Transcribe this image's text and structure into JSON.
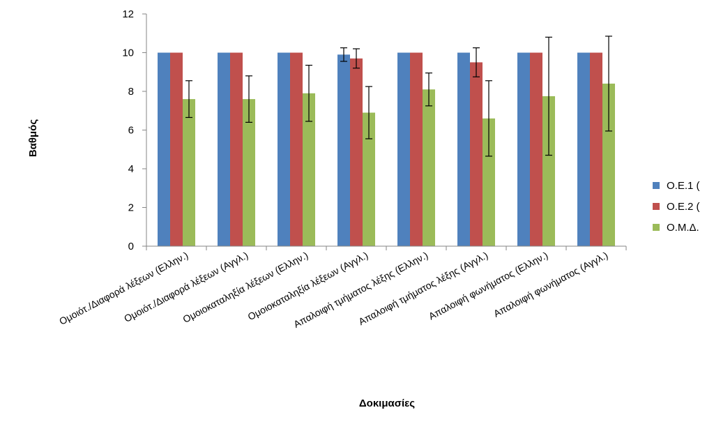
{
  "chart_data": {
    "type": "bar",
    "title": "",
    "xlabel": "Δοκιμασίες",
    "ylabel": "Βαθμός",
    "ylim": [
      0,
      12
    ],
    "yticks": [
      0,
      2,
      4,
      6,
      8,
      10,
      12
    ],
    "grid": false,
    "legend_position": "right",
    "categories": [
      "Ομοιότ./Διαφορά λέξεων (Ελλην.)",
      "Ομοιότ./Διαφορά λέξεων (Αγγλ.)",
      "Ομοιοκαταληξία λέξεων (Ελλην.)",
      "Ομοιοκαταληξία λέξεων (Αγγλ.)",
      "Απαλοιφή τμήματος λέξης (Ελλην.)",
      "Απαλοιφή τμήματος λέξης (Αγγλ.)",
      "Απαλοιφή φωνήματος (Ελλην.)",
      "Απαλοιφή φωνήματος (Αγγλ.)"
    ],
    "series": [
      {
        "name": "Ο.Ε.1 (",
        "color": "#4f81bd",
        "values": [
          10,
          10,
          10,
          9.9,
          10,
          10,
          10,
          10
        ],
        "errors": [
          0,
          0,
          0,
          0.35,
          0,
          0,
          0,
          0
        ]
      },
      {
        "name": "Ο.Ε.2 (",
        "color": "#c0504d",
        "values": [
          10,
          10,
          10,
          9.7,
          10,
          9.5,
          10,
          10
        ],
        "errors": [
          0,
          0,
          0,
          0.5,
          0,
          0.75,
          0,
          0
        ]
      },
      {
        "name": "Ο.Μ.Δ.",
        "color": "#9bbb59",
        "values": [
          7.6,
          7.6,
          7.9,
          6.9,
          8.1,
          6.6,
          7.75,
          8.4
        ],
        "errors": [
          0.95,
          1.2,
          1.45,
          1.35,
          0.85,
          1.95,
          3.05,
          2.45
        ]
      }
    ]
  }
}
